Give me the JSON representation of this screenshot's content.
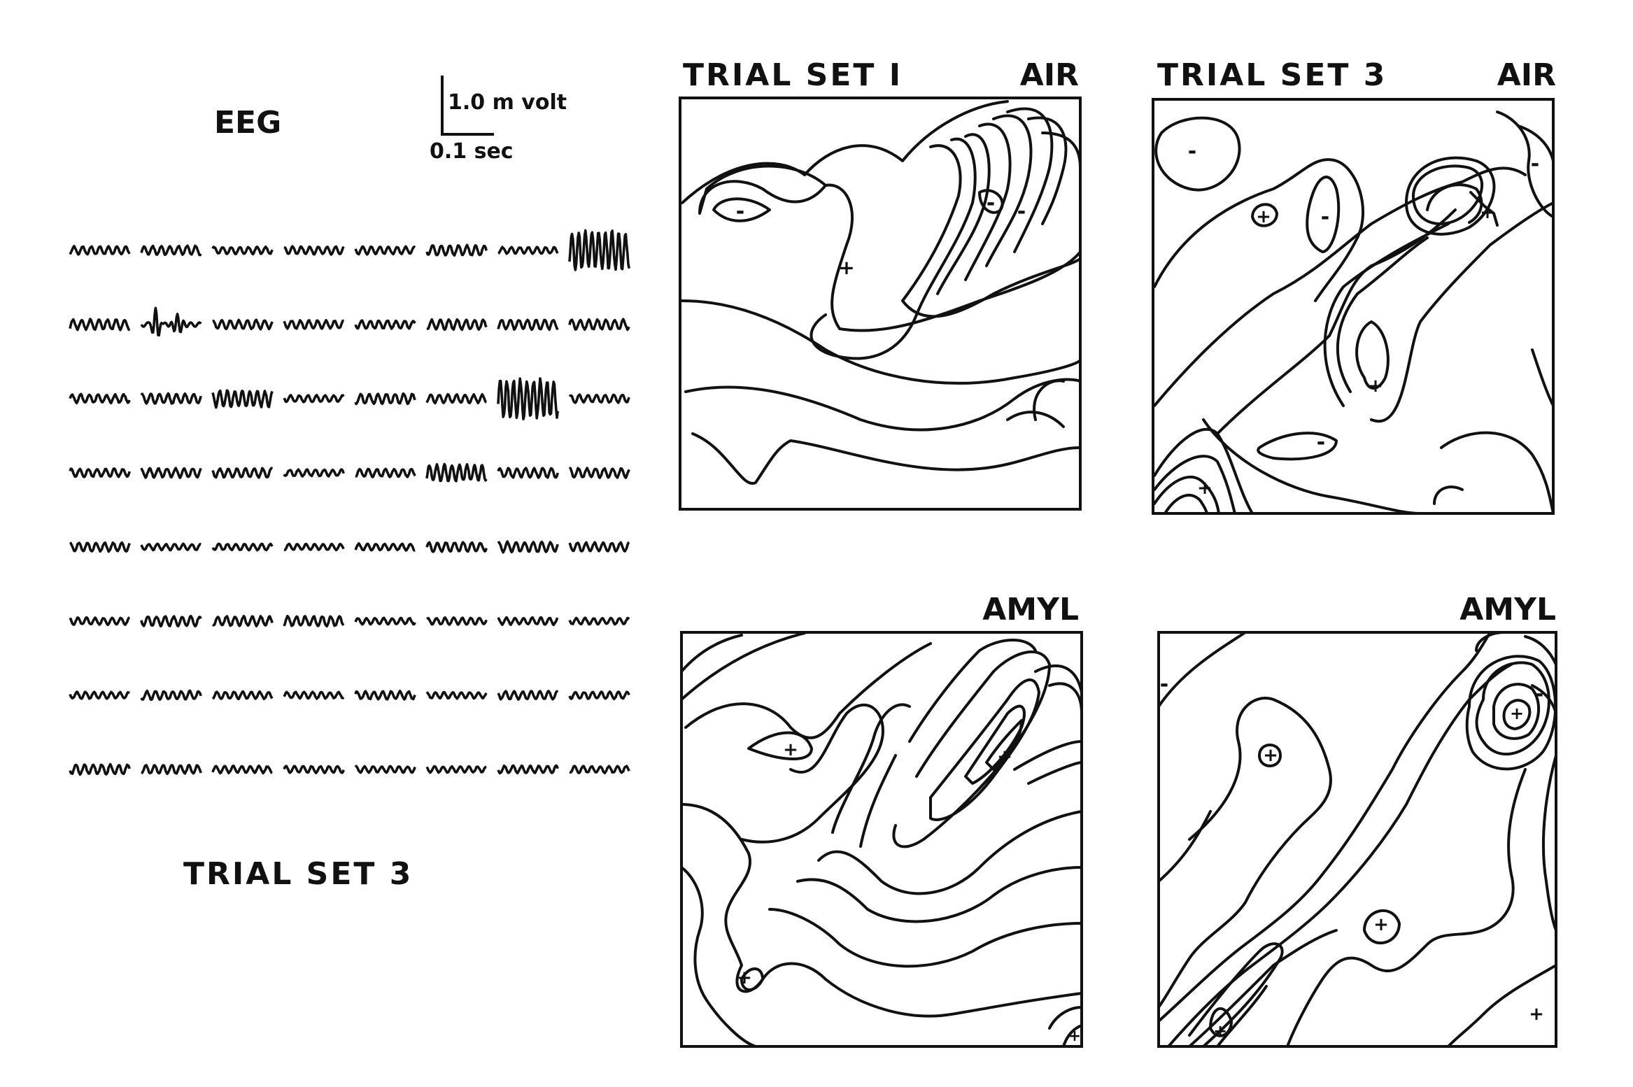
{
  "eeg": {
    "title": "EEG",
    "scale_voltage": "1.0 m volt",
    "scale_time": "0.1 sec",
    "caption": "TRIAL SET 3",
    "grid": {
      "rows": 8,
      "cols": 8
    },
    "large_traces": [
      {
        "row": 1,
        "col": 8,
        "amplitude": "large"
      },
      {
        "row": 2,
        "col": 2,
        "amplitude": "spike"
      },
      {
        "row": 3,
        "col": 3,
        "amplitude": "medium"
      },
      {
        "row": 3,
        "col": 7,
        "amplitude": "large"
      },
      {
        "row": 4,
        "col": 6,
        "amplitude": "medium"
      }
    ]
  },
  "maps": [
    {
      "title": "TRIAL SET I",
      "odor": "AIR"
    },
    {
      "title": "TRIAL SET 3",
      "odor": "AIR"
    },
    {
      "title": "",
      "odor": "AMYL"
    },
    {
      "title": "",
      "odor": "AMYL"
    }
  ],
  "markers": {
    "plus": "+",
    "minus": "-"
  }
}
